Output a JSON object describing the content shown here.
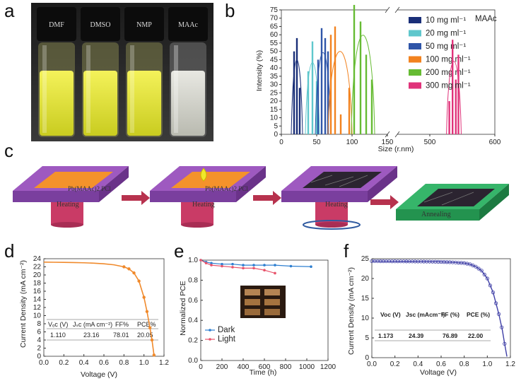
{
  "panel_labels": {
    "a": "a",
    "b": "b",
    "c": "c",
    "d": "d",
    "e": "e",
    "f": "f"
  },
  "panel_a": {
    "vials": [
      "DMF",
      "DMSO",
      "NMP",
      "MAAc"
    ]
  },
  "panel_b": {
    "annotation": "MAAc",
    "chart_data": {
      "type": "bar",
      "xlabel": "Size (r.nm)",
      "ylabel": "Intensity (%)",
      "x_ticks": [
        "0",
        "50",
        "100",
        "150",
        "500",
        "600"
      ],
      "y_ticks": [
        "0",
        "5",
        "10",
        "15",
        "20",
        "25",
        "30",
        "35",
        "40",
        "45",
        "50",
        "55",
        "60",
        "65",
        "70",
        "75"
      ],
      "legend_position": "top-right",
      "series": [
        {
          "name": "10 mg ml⁻¹",
          "color": "#1a2f78",
          "x": [
            18,
            22,
            26
          ],
          "values": [
            50,
            58,
            28
          ]
        },
        {
          "name": "20 mg ml⁻¹",
          "color": "#5fc7cc",
          "x": [
            38,
            44,
            50
          ],
          "values": [
            38,
            56,
            32
          ]
        },
        {
          "name": "50 mg ml⁻¹",
          "color": "#2f55a8",
          "x": [
            52,
            57,
            62,
            66
          ],
          "values": [
            45,
            64,
            58,
            50
          ]
        },
        {
          "name": "100 mg ml⁻¹",
          "color": "#f2821f",
          "x": [
            70,
            76,
            84,
            96
          ],
          "values": [
            60,
            65,
            12,
            28
          ]
        },
        {
          "name": "200 mg ml⁻¹",
          "color": "#66bb33",
          "x": [
            103,
            112,
            120,
            128
          ],
          "values": [
            78,
            68,
            48,
            33
          ]
        },
        {
          "name": "300 mg ml⁻¹",
          "color": "#e0337a",
          "x": [
            530,
            535,
            540,
            544
          ],
          "values": [
            20,
            57,
            33,
            48
          ]
        }
      ]
    }
  },
  "panel_c": {
    "steps": [
      {
        "substrate_label": "Pb(MAAc)2 PCl",
        "base": "Heating"
      },
      {
        "substrate_label": "Pb(MAAc)2 PCl",
        "base": "Heating"
      },
      {
        "substrate_label": "",
        "base": "Heating"
      },
      {
        "substrate_label": "",
        "base": "Annealing"
      }
    ]
  },
  "panel_d": {
    "chart_data": {
      "type": "line",
      "xlabel": "Voltage (V)",
      "ylabel": "Current Density (mA cm⁻²)",
      "xlim": [
        0,
        1.2
      ],
      "ylim": [
        0,
        24
      ],
      "x_ticks": [
        "0.0",
        "0.2",
        "0.4",
        "0.6",
        "0.8",
        "1.0",
        "1.2"
      ],
      "y_ticks": [
        "0",
        "2",
        "4",
        "6",
        "8",
        "10",
        "12",
        "14",
        "16",
        "18",
        "20",
        "22",
        "24"
      ],
      "series": [
        {
          "color": "#f08a2c",
          "x": [
            0,
            0.1,
            0.2,
            0.3,
            0.4,
            0.5,
            0.6,
            0.7,
            0.8,
            0.85,
            0.9,
            0.95,
            1.0,
            1.03,
            1.06,
            1.08,
            1.1
          ],
          "y": [
            23.16,
            23.13,
            23.1,
            23.05,
            23.0,
            22.9,
            22.75,
            22.5,
            22.0,
            21.5,
            20.5,
            18.5,
            14.5,
            11.0,
            7.0,
            4.0,
            0.3
          ]
        }
      ],
      "table": {
        "headers": [
          "Vₒc (V)",
          "Jₛc (mA cm⁻²)",
          "FF%",
          "PCE%"
        ],
        "values": [
          "1.110",
          "23.16",
          "78.01",
          "20.05"
        ]
      }
    }
  },
  "panel_e": {
    "chart_data": {
      "type": "line",
      "xlabel": "Time (h)",
      "ylabel": "Normalized PCE",
      "xlim": [
        0,
        1200
      ],
      "ylim": [
        0,
        1.0
      ],
      "x_ticks": [
        "0",
        "200",
        "400",
        "600",
        "800",
        "1000",
        "1200"
      ],
      "y_ticks": [
        "0.0",
        "0.2",
        "0.4",
        "0.6",
        "0.8",
        "1.0"
      ],
      "legend_position": "bottom-left",
      "series": [
        {
          "name": "Dark",
          "color": "#2e7fd0",
          "x": [
            0,
            50,
            100,
            200,
            300,
            400,
            500,
            600,
            700,
            850,
            1040
          ],
          "y": [
            1.0,
            0.98,
            0.97,
            0.96,
            0.96,
            0.95,
            0.95,
            0.95,
            0.95,
            0.94,
            0.935
          ]
        },
        {
          "name": "Light",
          "color": "#e8546b",
          "x": [
            0,
            50,
            100,
            200,
            300,
            400,
            500,
            600,
            700
          ],
          "y": [
            1.0,
            0.97,
            0.95,
            0.94,
            0.93,
            0.92,
            0.92,
            0.9,
            0.87
          ]
        }
      ]
    }
  },
  "panel_f": {
    "chart_data": {
      "type": "line",
      "xlabel": "Voltage (V)",
      "ylabel": "Current Density (mA cm⁻²)",
      "xlim": [
        0,
        1.2
      ],
      "ylim": [
        0,
        25
      ],
      "x_ticks": [
        "0.0",
        "0.2",
        "0.4",
        "0.6",
        "0.8",
        "1.0",
        "1.2"
      ],
      "y_ticks": [
        "0",
        "5",
        "10",
        "15",
        "20",
        "25"
      ],
      "series": [
        {
          "color": "#3f3fa6",
          "x": [
            0,
            0.1,
            0.2,
            0.3,
            0.4,
            0.5,
            0.6,
            0.7,
            0.8,
            0.85,
            0.9,
            0.95,
            1.0,
            1.05,
            1.1,
            1.13,
            1.15,
            1.17
          ],
          "y": [
            24.39,
            24.37,
            24.35,
            24.33,
            24.3,
            24.27,
            24.2,
            24.1,
            23.9,
            23.6,
            23.0,
            22.0,
            20.0,
            16.5,
            11.0,
            7.0,
            3.5,
            0.3
          ]
        }
      ],
      "table": {
        "headers": [
          "Voc (V)",
          "Jsc (mAcm⁻²)",
          "FF (%)",
          "PCE (%)"
        ],
        "values": [
          "1.173",
          "24.39",
          "76.89",
          "22.00"
        ]
      }
    }
  }
}
